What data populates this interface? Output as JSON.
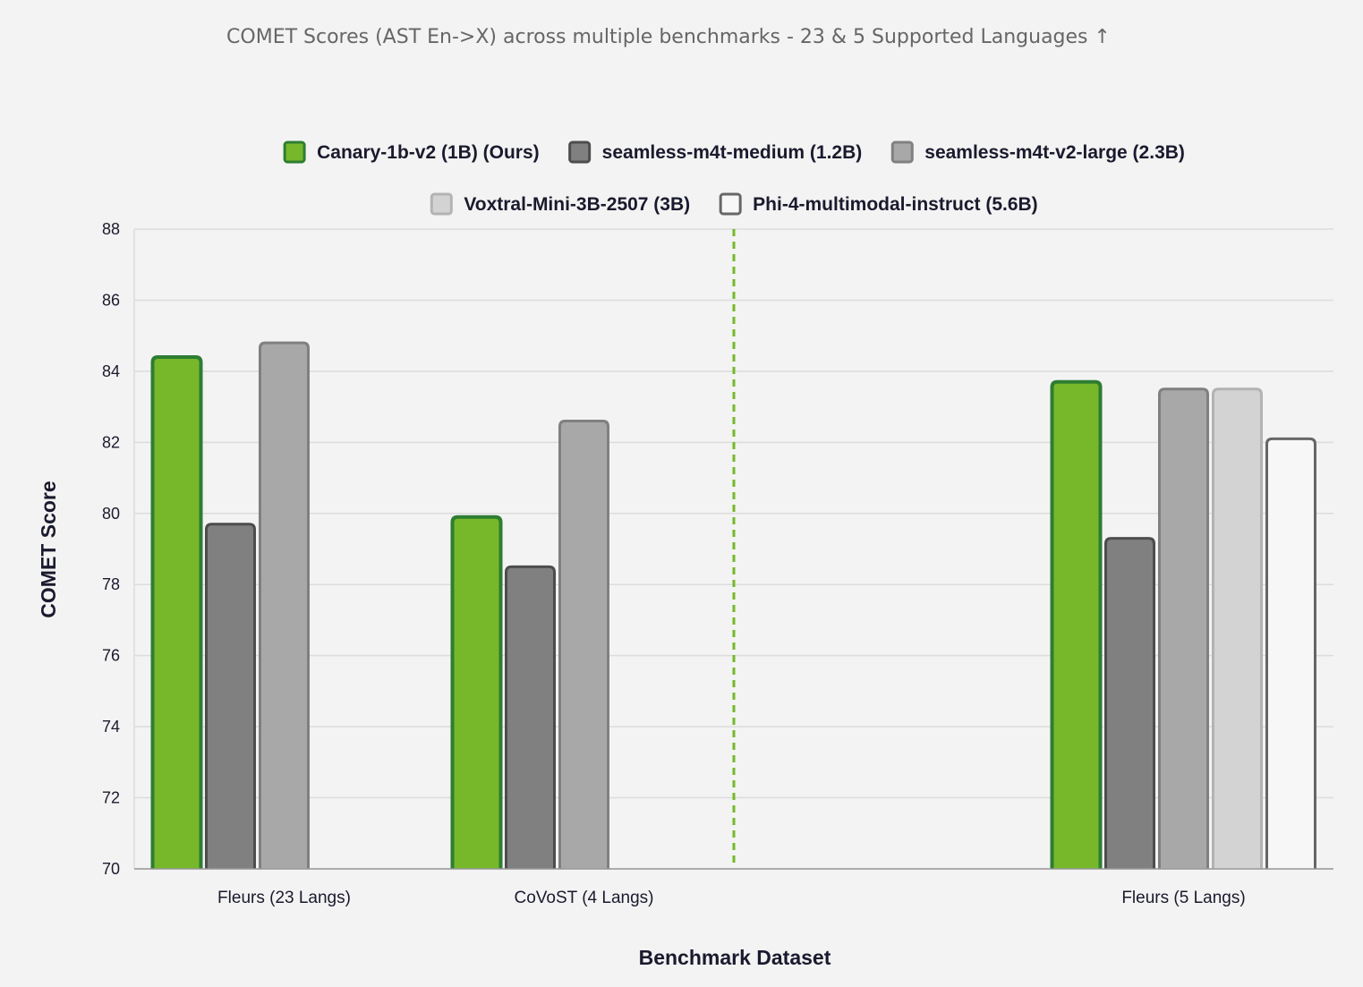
{
  "chart_data": {
    "type": "bar",
    "title": "COMET Scores (AST En->X) across multiple benchmarks - 23 & 5 Supported Languages ↑",
    "xlabel": "Benchmark Dataset",
    "ylabel": "COMET Score",
    "ylim": [
      70,
      88
    ],
    "yticks": [
      70,
      72,
      74,
      76,
      78,
      80,
      82,
      84,
      86,
      88
    ],
    "grid": true,
    "legend_position": "top",
    "categories": [
      "Fleurs (23 Langs)",
      "CoVoST (4 Langs)",
      "Fleurs (5 Langs)"
    ],
    "series": [
      {
        "name": "Canary-1b-v2 (1B) (Ours)",
        "values": [
          84.4,
          79.9,
          83.7
        ],
        "fill": "#76b82a",
        "stroke": "#2e7d32"
      },
      {
        "name": "seamless-m4t-medium (1.2B)",
        "values": [
          79.7,
          78.5,
          79.3
        ],
        "fill": "#808080",
        "stroke": "#4d4d4d"
      },
      {
        "name": "seamless-m4t-v2-large (2.3B)",
        "values": [
          84.8,
          82.6,
          83.5
        ],
        "fill": "#a8a8a8",
        "stroke": "#808080"
      },
      {
        "name": "Voxtral-Mini-3B-2507 (3B)",
        "values": [
          null,
          null,
          83.5
        ],
        "fill": "#d3d3d3",
        "stroke": "#b3b3b3"
      },
      {
        "name": "Phi-4-multimodal-instruct (5.6B)",
        "values": [
          null,
          null,
          82.1
        ],
        "fill": "#f7f7f7",
        "stroke": "#666666"
      }
    ],
    "divider": {
      "after_category": 1,
      "color": "#76b82a",
      "style": "dashed"
    }
  }
}
